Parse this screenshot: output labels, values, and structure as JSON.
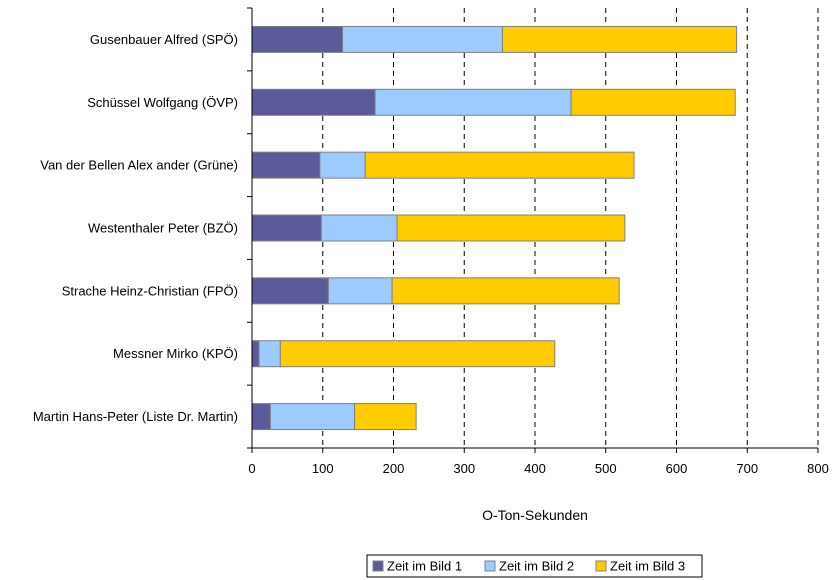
{
  "chart_data": {
    "type": "bar",
    "orientation": "horizontal",
    "stacked": true,
    "categories": [
      "Gusenbauer Alfred (SPÖ)",
      "Schüssel Wolfgang (ÖVP)",
      "Van der Bellen Alex ander (Grüne)",
      "Westenthaler Peter (BZÖ)",
      "Strache Heinz-Christian (FPÖ)",
      "Messner Mirko (KPÖ)",
      "Martin Hans-Peter (Liste Dr. Martin)"
    ],
    "series": [
      {
        "name": "Zeit im Bild 1",
        "color": "#5b5b9c",
        "values": [
          128,
          174,
          96,
          98,
          108,
          10,
          26
        ]
      },
      {
        "name": "Zeit im Bild 2",
        "color": "#9ecbff",
        "values": [
          226,
          277,
          64,
          107,
          90,
          30,
          119
        ]
      },
      {
        "name": "Zeit im Bild 3",
        "color": "#ffcc00",
        "values": [
          331,
          232,
          380,
          322,
          321,
          388,
          87
        ]
      }
    ],
    "xlabel": "O-Ton-Sekunden",
    "ylabel": "",
    "xlim": [
      0,
      800
    ],
    "xticks": [
      0,
      100,
      200,
      300,
      400,
      500,
      600,
      700,
      800
    ],
    "grid": "vertical dashed",
    "legend_position": "bottom"
  }
}
